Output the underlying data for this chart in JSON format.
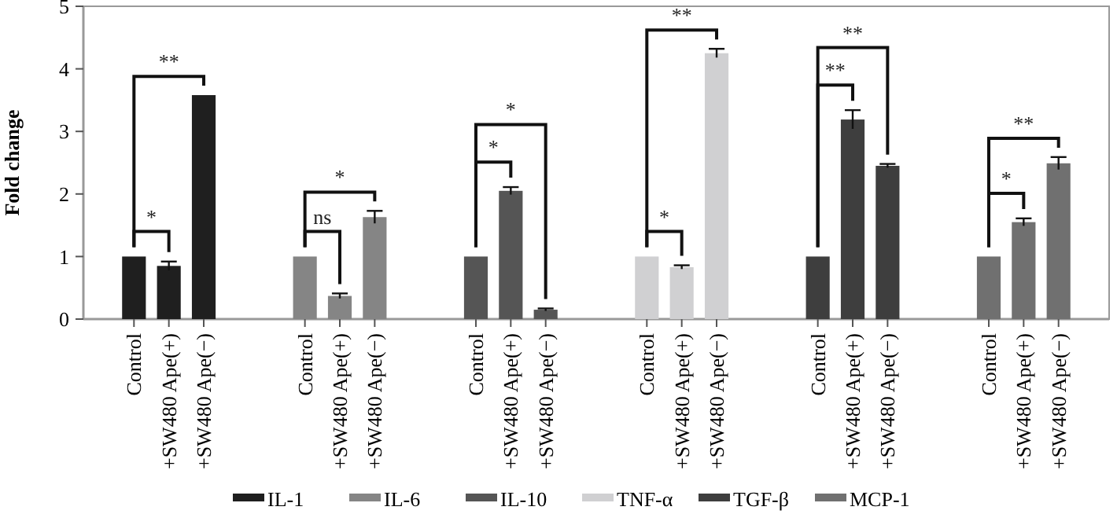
{
  "chart_data": [
    {
      "type": "bar",
      "ylabel": "Fold change",
      "ylim": [
        0,
        5
      ],
      "yticks": [
        0,
        1,
        2,
        3,
        4,
        5
      ],
      "legend": "bottom",
      "categories": [
        "Control",
        "+SW480 Ape(+)",
        "+SW480 Ape(−)"
      ],
      "series": [
        {
          "name": "IL-1",
          "color": "#1f1f1f",
          "values": [
            1.0,
            0.85,
            3.58
          ],
          "errors": [
            null,
            0.07,
            null
          ]
        }
      ],
      "annotations": [
        "*",
        "**"
      ]
    },
    {
      "type": "bar",
      "ylim": [
        0,
        5
      ],
      "yticks": [
        0,
        1,
        2,
        3,
        4,
        5
      ],
      "tick_labels": "x",
      "legend": "bottom",
      "categories": [
        "Control",
        "+SW480 Ape(+)",
        "+SW480 Ape(−)"
      ],
      "series": [
        {
          "name": "IL-6",
          "color": "#858585",
          "values": [
            1.0,
            0.37,
            1.63
          ],
          "errors": [
            null,
            0.04,
            0.1
          ]
        }
      ],
      "annotations": [
        "ns",
        "*"
      ]
    },
    {
      "type": "bar",
      "ylim": [
        0,
        5
      ],
      "yticks": [
        0,
        1,
        2,
        3,
        4,
        5
      ],
      "tick_labels": "x",
      "legend": "bottom",
      "categories": [
        "Control",
        "+SW480 Ape(+)",
        "+SW480 Ape(−)"
      ],
      "series": [
        {
          "name": "IL-10",
          "color": "#555555",
          "values": [
            1.0,
            2.05,
            0.15
          ],
          "errors": [
            null,
            0.06,
            0.02
          ]
        }
      ],
      "annotations": [
        "*",
        "*"
      ]
    },
    {
      "type": "bar",
      "ylim": [
        0,
        5
      ],
      "yticks": [
        0,
        1,
        2,
        3,
        4,
        5
      ],
      "tick_labels": "x",
      "legend": "bottom",
      "categories": [
        "Control",
        "+SW480 Ape(+)",
        "+SW480 Ape(−)"
      ],
      "series": [
        {
          "name": "TNF-α",
          "color": "#d0d0d2",
          "values": [
            1.0,
            0.83,
            4.25
          ],
          "errors": [
            null,
            0.03,
            0.07
          ]
        }
      ],
      "annotations": [
        "*",
        "**"
      ]
    },
    {
      "type": "bar",
      "ylim": [
        0,
        5
      ],
      "yticks": [
        0,
        1,
        2,
        3,
        4,
        5
      ],
      "tick_labels": "x",
      "legend": "bottom",
      "categories": [
        "Control",
        "+SW480 Ape(+)",
        "+SW480 Ape(−)"
      ],
      "series": [
        {
          "name": "TGF-β",
          "color": "#3e3e3e",
          "values": [
            1.0,
            3.19,
            2.45
          ],
          "errors": [
            null,
            0.15,
            0.03
          ]
        }
      ],
      "annotations": [
        "**",
        "**"
      ]
    },
    {
      "type": "bar",
      "ylim": [
        0,
        5
      ],
      "yticks": [
        0,
        1,
        2,
        3,
        4,
        5
      ],
      "tick_labels": "x",
      "legend": "bottom",
      "categories": [
        "Control",
        "+SW480 Ape(+)",
        "+SW480 Ape(−)"
      ],
      "series": [
        {
          "name": "MCP-1",
          "color": "#707070",
          "values": [
            1.0,
            1.55,
            2.49
          ],
          "errors": [
            null,
            0.06,
            0.1
          ]
        }
      ],
      "annotations": [
        "*",
        "**"
      ]
    }
  ]
}
